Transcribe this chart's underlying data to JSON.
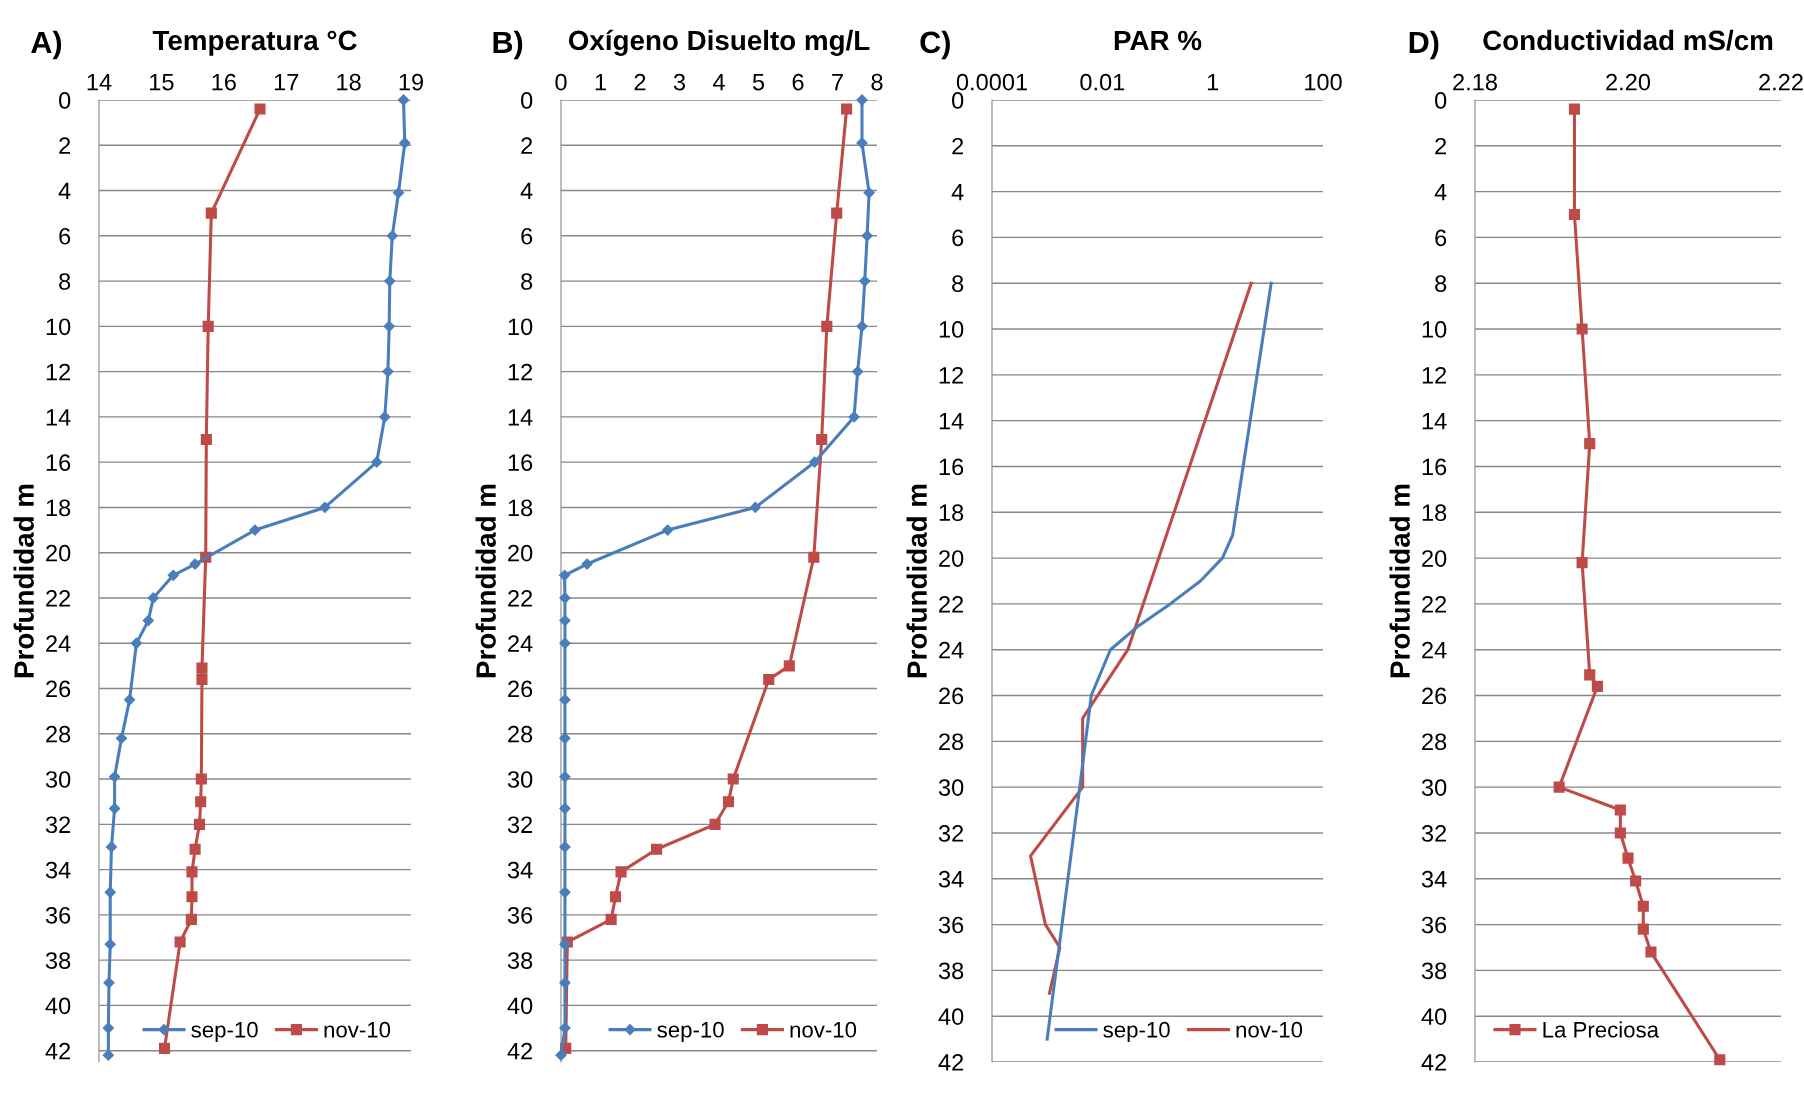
{
  "chart_data": [
    {
      "type": "line",
      "title": "Temperatura °C",
      "ylabel": "Profundidad m",
      "annotations": [
        "A)"
      ],
      "xlim": [
        14,
        19
      ],
      "xticks": [
        14,
        15,
        16,
        17,
        18,
        19
      ],
      "ylim": [
        42.5,
        0
      ],
      "yticks": [
        0,
        2,
        4,
        6,
        8,
        10,
        12,
        14,
        16,
        18,
        20,
        22,
        24,
        26,
        28,
        30,
        32,
        34,
        36,
        38,
        40,
        42
      ],
      "grid": "y",
      "legend": "bottom right",
      "series": [
        {
          "name": "sep-10",
          "color": "#4a7ebb",
          "marker": "diamond",
          "x": [
            18.88,
            18.9,
            18.8,
            18.7,
            18.66,
            18.65,
            18.63,
            18.58,
            18.45,
            17.62,
            16.5,
            15.54,
            15.19,
            14.87,
            14.79,
            14.6,
            14.49,
            14.36,
            14.25,
            14.25,
            14.2,
            14.18,
            14.18,
            14.16,
            14.15,
            14.15
          ],
          "values": [
            0,
            1.9,
            4.1,
            6,
            8,
            10,
            12,
            14,
            16,
            18,
            19,
            20.5,
            21,
            22,
            23,
            24,
            26.5,
            28.2,
            29.9,
            31.3,
            33,
            35,
            37.3,
            39,
            41,
            42.2
          ]
        },
        {
          "name": "nov-10",
          "color": "#be4b48",
          "marker": "square",
          "x": [
            16.58,
            15.8,
            15.75,
            15.72,
            15.71,
            15.65,
            15.65,
            15.64,
            15.63,
            15.61,
            15.54,
            15.49,
            15.49,
            15.48,
            15.3,
            15.05
          ],
          "values": [
            0.4,
            5,
            10,
            15,
            20.2,
            25.1,
            25.6,
            30,
            31,
            32,
            33.1,
            34.1,
            35.2,
            36.2,
            37.2,
            41.9
          ]
        }
      ]
    },
    {
      "type": "line",
      "title": "Oxígeno Disuelto mg/L",
      "ylabel": "Profundidad m",
      "annotations": [
        "B)"
      ],
      "xlim": [
        0,
        8
      ],
      "xticks": [
        0,
        1,
        2,
        3,
        4,
        5,
        6,
        7,
        8
      ],
      "ylim": [
        42.5,
        0
      ],
      "yticks": [
        0,
        2,
        4,
        6,
        8,
        10,
        12,
        14,
        16,
        18,
        20,
        22,
        24,
        26,
        28,
        30,
        32,
        34,
        36,
        38,
        40,
        42
      ],
      "grid": "y",
      "legend": "bottom right",
      "series": [
        {
          "name": "sep-10",
          "color": "#4a7ebb",
          "marker": "diamond",
          "x": [
            7.62,
            7.62,
            7.8,
            7.75,
            7.69,
            7.62,
            7.51,
            7.42,
            6.42,
            4.92,
            2.7,
            0.66,
            0.09,
            0.1,
            0.1,
            0.1,
            0.1,
            0.1,
            0.1,
            0.1,
            0.1,
            0.1,
            0.1,
            0.1,
            0.1,
            0
          ],
          "values": [
            0,
            1.9,
            4.1,
            6,
            8,
            10,
            12,
            14,
            16,
            18,
            19,
            20.5,
            21,
            22,
            23,
            24,
            26.5,
            28.2,
            29.9,
            31.3,
            33,
            35,
            37.3,
            39,
            41,
            42.2
          ]
        },
        {
          "name": "nov-10",
          "color": "#be4b48",
          "marker": "square",
          "x": [
            7.23,
            6.98,
            6.73,
            6.6,
            6.4,
            5.78,
            5.26,
            4.36,
            4.24,
            3.9,
            2.42,
            1.52,
            1.38,
            1.27,
            0.16,
            0.12
          ],
          "values": [
            0.4,
            5,
            10,
            15,
            20.2,
            25,
            25.6,
            30,
            31,
            32,
            33.1,
            34.1,
            35.2,
            36.2,
            37.2,
            41.9
          ]
        }
      ]
    },
    {
      "type": "line",
      "title": "PAR %",
      "ylabel": "Profundidad m",
      "annotations": [
        "C)"
      ],
      "log": "x",
      "xlim": [
        0.0001,
        100
      ],
      "xticks": [
        0.0001,
        0.01,
        1,
        100
      ],
      "ylim": [
        42,
        0
      ],
      "yticks": [
        0,
        2,
        4,
        6,
        8,
        10,
        12,
        14,
        16,
        18,
        20,
        22,
        24,
        26,
        28,
        30,
        32,
        34,
        36,
        38,
        40,
        42
      ],
      "grid": "y",
      "legend": "bottom right",
      "series": [
        {
          "name": "sep-10",
          "color": "#4a7ebb",
          "marker": "none",
          "x": [
            11.5,
            2.3,
            1.5,
            0.6,
            0.17,
            0.043,
            0.014,
            0.0063,
            0.0039,
            0.001
          ],
          "values": [
            8,
            19,
            20,
            21,
            22,
            23,
            24,
            26,
            30,
            41
          ]
        },
        {
          "name": "nov-10",
          "color": "#be4b48",
          "marker": "none",
          "x": [
            5.0,
            0.029,
            0.0044,
            0.0044,
            0.0005,
            0.00093,
            0.0017,
            0.0011
          ],
          "values": [
            8,
            24,
            27,
            30,
            33,
            36,
            37,
            39
          ]
        }
      ]
    },
    {
      "type": "line",
      "title": "Conductividad mS/cm",
      "ylabel": "Profundidad m",
      "annotations": [
        "D)"
      ],
      "xlim": [
        2.18,
        2.22
      ],
      "xticks": [
        {
          "value": 2.18,
          "label": "2.18"
        },
        {
          "value": 2.2,
          "label": "2.20"
        },
        {
          "value": 2.22,
          "label": "2.22"
        }
      ],
      "ylim": [
        42,
        0
      ],
      "yticks": [
        0,
        2,
        4,
        6,
        8,
        10,
        12,
        14,
        16,
        18,
        20,
        22,
        24,
        26,
        28,
        30,
        32,
        34,
        36,
        38,
        40,
        42
      ],
      "grid": "y",
      "legend": "bottom left",
      "series": [
        {
          "name": "La Preciosa",
          "color": "#be4b48",
          "marker": "square",
          "x": [
            2.193,
            2.193,
            2.194,
            2.195,
            2.194,
            2.195,
            2.196,
            2.191,
            2.199,
            2.199,
            2.2,
            2.201,
            2.202,
            2.202,
            2.203,
            2.212
          ],
          "values": [
            0.4,
            5,
            10,
            15,
            20.2,
            25.1,
            25.6,
            30,
            31,
            32,
            33.1,
            34.1,
            35.2,
            36.2,
            37.2,
            41.9
          ]
        }
      ]
    }
  ]
}
